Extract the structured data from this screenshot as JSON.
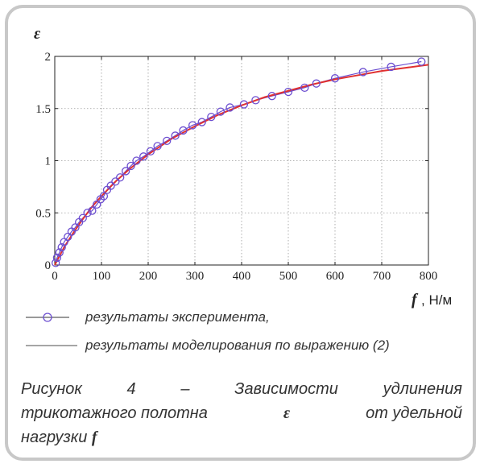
{
  "chart_data": {
    "type": "line",
    "ylabel": "ε",
    "xlabel_var": "f",
    "xlabel_unit": ", Н/м",
    "xlim": [
      0,
      800
    ],
    "ylim": [
      0,
      2
    ],
    "x_ticks": [
      "0",
      "100",
      "200",
      "300",
      "400",
      "500",
      "600",
      "700",
      "800"
    ],
    "y_ticks": [
      "0",
      "0.5",
      "1",
      "1.5",
      "2"
    ],
    "grid": true,
    "series": [
      {
        "name": "результаты эксперимента,",
        "marker": "circle",
        "color": "#6c4ed0",
        "x": [
          2,
          5,
          10,
          15,
          20,
          28,
          36,
          44,
          52,
          60,
          70,
          80,
          90,
          98,
          105,
          112,
          120,
          130,
          140,
          152,
          163,
          175,
          190,
          205,
          220,
          240,
          258,
          275,
          295,
          315,
          335,
          355,
          375,
          405,
          430,
          465,
          500,
          535,
          560,
          600,
          660,
          720,
          785
        ],
        "y": [
          0.02,
          0.07,
          0.12,
          0.17,
          0.22,
          0.27,
          0.32,
          0.36,
          0.41,
          0.45,
          0.5,
          0.52,
          0.58,
          0.63,
          0.66,
          0.72,
          0.76,
          0.8,
          0.84,
          0.9,
          0.95,
          1.0,
          1.04,
          1.09,
          1.14,
          1.19,
          1.24,
          1.29,
          1.34,
          1.37,
          1.42,
          1.47,
          1.51,
          1.54,
          1.58,
          1.62,
          1.66,
          1.7,
          1.74,
          1.79,
          1.85,
          1.9,
          1.95
        ]
      },
      {
        "name": "результаты моделирования по выражению (2)",
        "color": "#e03030",
        "x": [
          0,
          20,
          40,
          60,
          80,
          100,
          130,
          160,
          200,
          250,
          300,
          350,
          400,
          450,
          500,
          550,
          600,
          650,
          700,
          750,
          800
        ],
        "y": [
          0,
          0.17,
          0.31,
          0.44,
          0.56,
          0.66,
          0.8,
          0.92,
          1.06,
          1.21,
          1.33,
          1.44,
          1.53,
          1.61,
          1.67,
          1.73,
          1.78,
          1.82,
          1.86,
          1.89,
          1.92
        ]
      }
    ]
  },
  "legend": {
    "experiment": "результаты эксперимента,",
    "model": "результаты моделирования по выражению (2)"
  },
  "caption": {
    "line1": "Рисунок 4 – Зависимости удлинения",
    "line2": "трикотажного полотна",
    "var_eps": "ε",
    "line2_end": "от удельной",
    "line3": "нагрузки",
    "var_f": "f"
  }
}
